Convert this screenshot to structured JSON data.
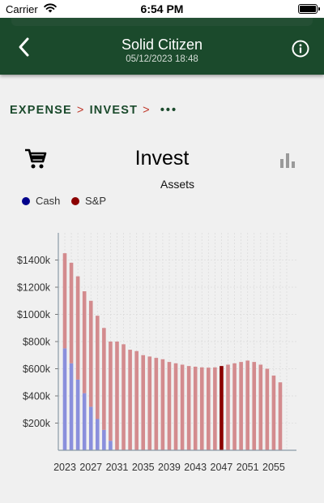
{
  "status_bar": {
    "carrier": "Carrier",
    "time": "6:54 PM"
  },
  "header": {
    "title": "Solid Citizen",
    "subtitle": "05/12/2023 18:48"
  },
  "breadcrumb": {
    "items": [
      "EXPENSE",
      "INVEST"
    ],
    "more": "•••"
  },
  "page": {
    "title": "Invest"
  },
  "colors": {
    "header": "#1b4a2c",
    "cash": "#8a8fdc",
    "sp": "#d38b8e",
    "sp_highlight": "#8b0000",
    "cash_legend": "#00008b",
    "sp_legend": "#8b0000"
  },
  "chart_data": {
    "type": "bar",
    "stacked": true,
    "title": "Assets",
    "xlabel": "",
    "ylabel": "",
    "ylim": [
      0,
      1600
    ],
    "y_unit": "$k",
    "y_ticks": [
      "$200k",
      "$400k",
      "$600k",
      "$800k",
      "$1000k",
      "$1200k",
      "$1400k"
    ],
    "x_ticks": [
      "2023",
      "2027",
      "2031",
      "2035",
      "2039",
      "2043",
      "2047",
      "2051",
      "2055"
    ],
    "grid": true,
    "legend_position": "top-left",
    "highlighted_year": 2047,
    "categories": [
      2023,
      2024,
      2025,
      2026,
      2027,
      2028,
      2029,
      2030,
      2031,
      2032,
      2033,
      2034,
      2035,
      2036,
      2037,
      2038,
      2039,
      2040,
      2041,
      2042,
      2043,
      2044,
      2045,
      2046,
      2047,
      2048,
      2049,
      2050,
      2051,
      2052,
      2053,
      2054,
      2055,
      2056
    ],
    "series": [
      {
        "name": "Cash",
        "values": [
          750,
          640,
          520,
          420,
          320,
          230,
          150,
          70,
          0,
          0,
          0,
          0,
          0,
          0,
          0,
          0,
          0,
          0,
          0,
          0,
          0,
          0,
          0,
          0,
          0,
          0,
          0,
          0,
          0,
          0,
          0,
          0,
          0,
          0
        ]
      },
      {
        "name": "S&P",
        "values": [
          700,
          740,
          760,
          750,
          780,
          760,
          750,
          730,
          800,
          780,
          740,
          730,
          700,
          690,
          680,
          670,
          650,
          640,
          630,
          620,
          615,
          610,
          608,
          610,
          620,
          630,
          640,
          650,
          660,
          650,
          630,
          600,
          550,
          500
        ]
      }
    ]
  }
}
